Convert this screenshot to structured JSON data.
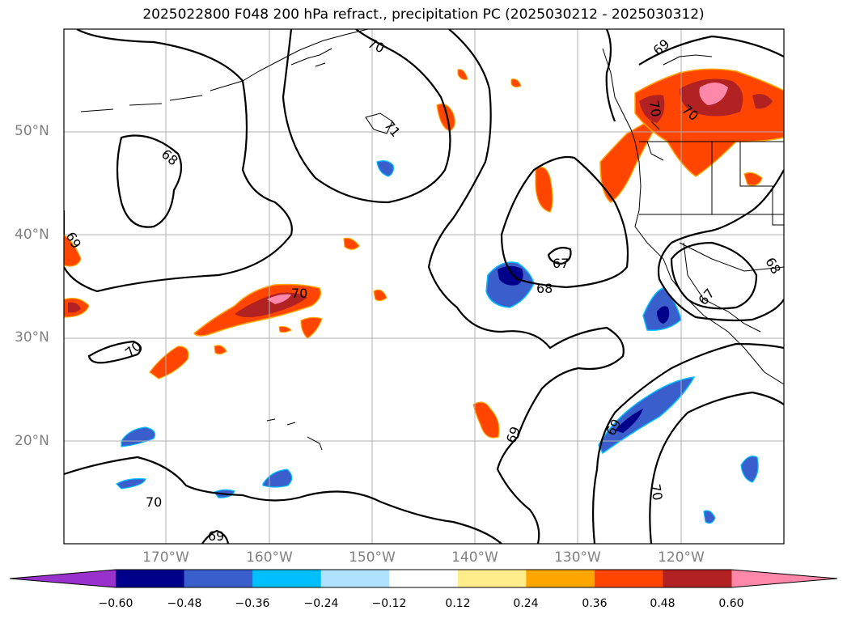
{
  "title": "2025022800 F048 200 hPa refract., precipitation PC (2025030212 - 2025030312)",
  "lat_labels": [
    "50°N",
    "40°N",
    "30°N",
    "20°N"
  ],
  "lon_labels": [
    "170°W",
    "160°W",
    "150°W",
    "140°W",
    "130°W",
    "120°W"
  ],
  "contour_labels": [
    "70",
    "71",
    "68",
    "69",
    "70",
    "70",
    "67",
    "68",
    "67",
    "68",
    "69",
    "70",
    "69",
    "70",
    "69",
    "70",
    "70",
    "69"
  ],
  "colorbar": {
    "ticks": [
      "−0.60",
      "−0.48",
      "−0.36",
      "−0.24",
      "−0.12",
      "0.12",
      "0.24",
      "0.36",
      "0.48",
      "0.60"
    ],
    "colors": [
      "#9932cc",
      "#00008b",
      "#3a5fcd",
      "#00bfff",
      "#b0e2ff",
      "#ffffff",
      "#ffec8b",
      "#ffa500",
      "#ff4500",
      "#b22222",
      "#ff88aa"
    ]
  }
}
